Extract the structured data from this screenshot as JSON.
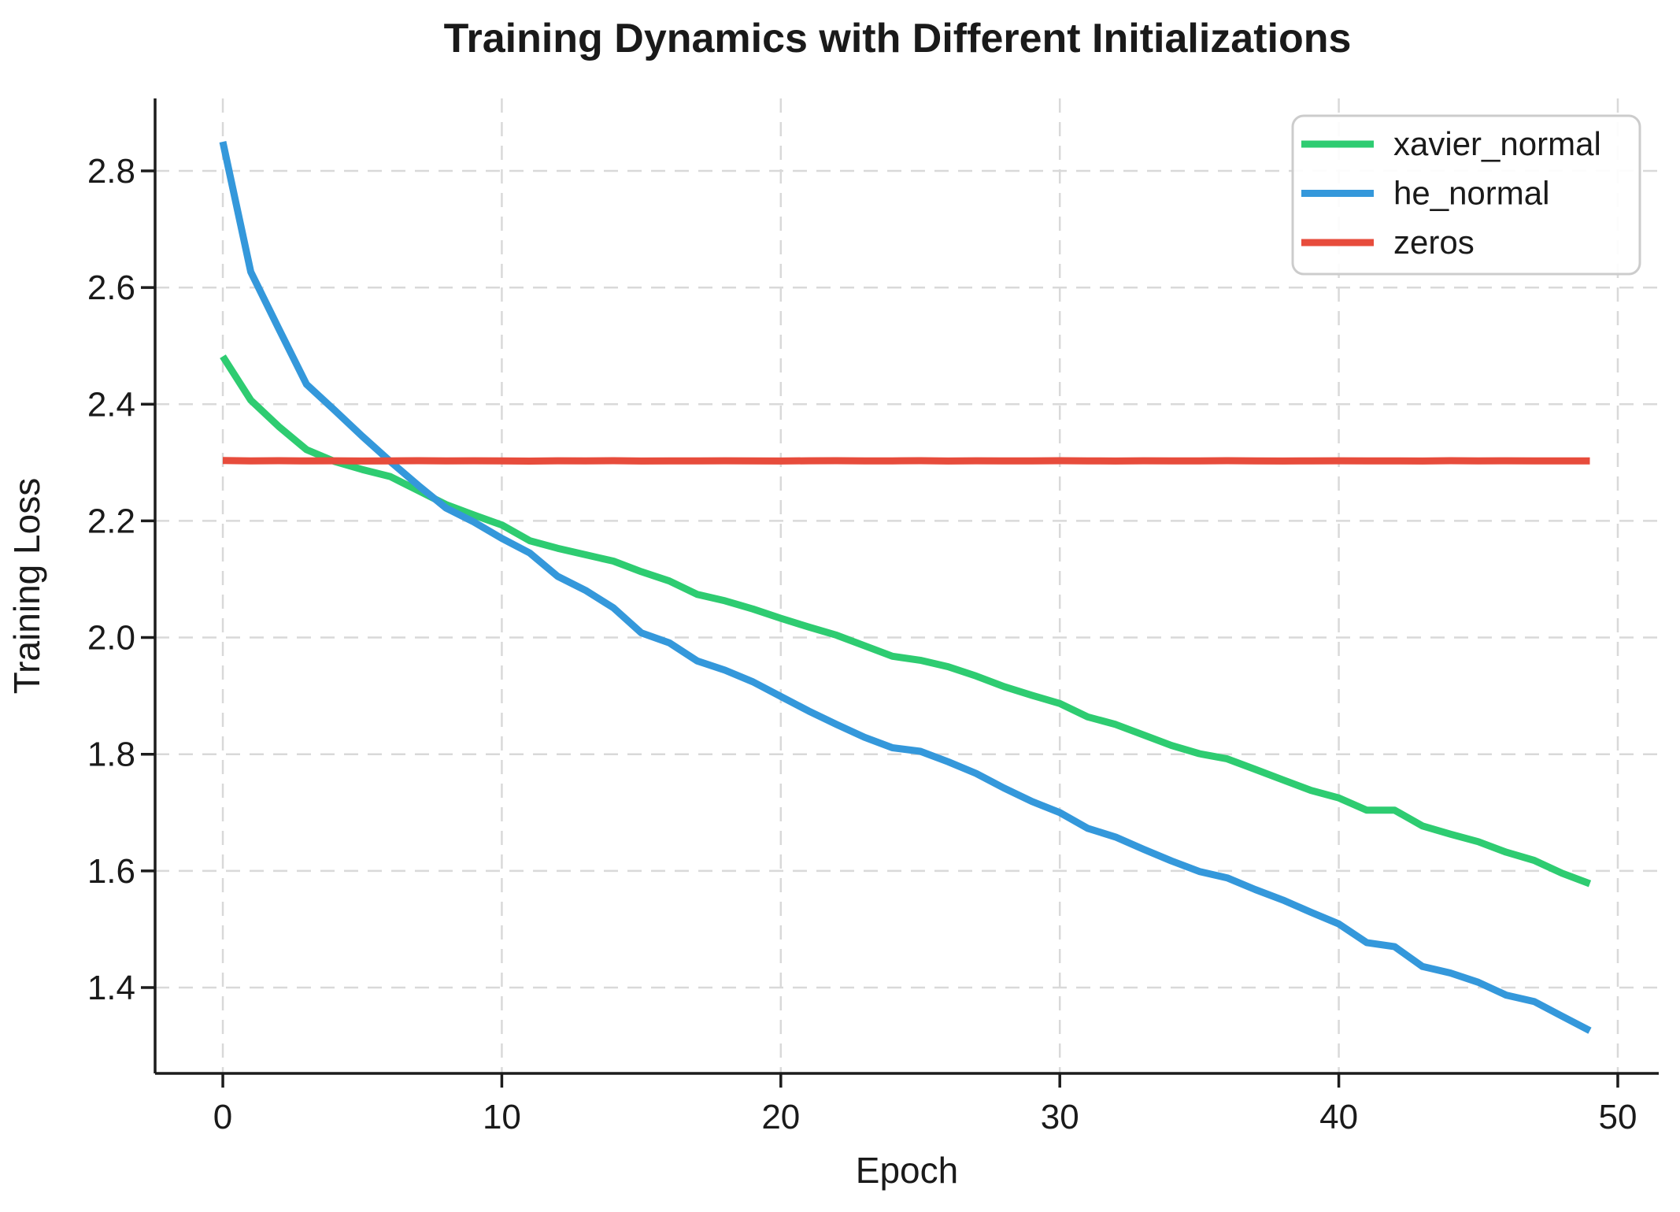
{
  "chart_data": {
    "type": "line",
    "title": "Training Dynamics with Different Initializations",
    "xlabel": "Epoch",
    "ylabel": "Training Loss",
    "x": [
      0,
      1,
      2,
      3,
      4,
      5,
      6,
      7,
      8,
      9,
      10,
      11,
      12,
      13,
      14,
      15,
      16,
      17,
      18,
      19,
      20,
      21,
      22,
      23,
      24,
      25,
      26,
      27,
      28,
      29,
      30,
      31,
      32,
      33,
      34,
      35,
      36,
      37,
      38,
      39,
      40,
      41,
      42,
      43,
      44,
      45,
      46,
      47,
      48,
      49
    ],
    "series": [
      {
        "name": "xavier_normal",
        "color": "#2ecc71",
        "values": [
          2.482,
          2.407,
          2.362,
          2.322,
          2.302,
          2.288,
          2.276,
          2.252,
          2.228,
          2.21,
          2.193,
          2.166,
          2.153,
          2.142,
          2.131,
          2.113,
          2.097,
          2.074,
          2.063,
          2.049,
          2.033,
          2.018,
          2.004,
          1.986,
          1.968,
          1.961,
          1.95,
          1.934,
          1.916,
          1.901,
          1.887,
          1.864,
          1.851,
          1.833,
          1.815,
          1.801,
          1.792,
          1.774,
          1.756,
          1.738,
          1.725,
          1.704,
          1.704,
          1.677,
          1.663,
          1.65,
          1.632,
          1.618,
          1.596,
          1.578
        ]
      },
      {
        "name": "he_normal",
        "color": "#3498db",
        "values": [
          2.85,
          2.627,
          2.53,
          2.434,
          2.39,
          2.345,
          2.302,
          2.261,
          2.222,
          2.198,
          2.17,
          2.145,
          2.105,
          2.081,
          2.051,
          2.008,
          1.991,
          1.96,
          1.944,
          1.924,
          1.899,
          1.874,
          1.851,
          1.829,
          1.811,
          1.805,
          1.787,
          1.767,
          1.742,
          1.719,
          1.7,
          1.673,
          1.658,
          1.637,
          1.617,
          1.599,
          1.588,
          1.568,
          1.55,
          1.529,
          1.509,
          1.477,
          1.47,
          1.436,
          1.425,
          1.409,
          1.387,
          1.376,
          1.351,
          1.326
        ]
      },
      {
        "name": "zeros",
        "color": "#e74c3c",
        "values": [
          2.3035,
          2.3029,
          2.3031,
          2.3027,
          2.303,
          2.3026,
          2.3029,
          2.3032,
          2.3027,
          2.303,
          2.3028,
          2.3025,
          2.303,
          2.3028,
          2.3031,
          2.3026,
          2.3029,
          2.3027,
          2.303,
          2.3028,
          2.3026,
          2.303,
          2.3032,
          2.3027,
          2.3029,
          2.3031,
          2.3026,
          2.303,
          2.3028,
          2.3027,
          2.3031,
          2.3029,
          2.3026,
          2.303,
          2.3027,
          2.3029,
          2.3031,
          2.3028,
          2.3026,
          2.3029,
          2.303,
          2.3027,
          2.3029,
          2.3026,
          2.3031,
          2.3028,
          2.303,
          2.3027,
          2.3029,
          2.3028
        ]
      }
    ],
    "xticks": [
      0,
      10,
      20,
      30,
      40,
      50
    ],
    "yticks": [
      1.4,
      1.6,
      1.8,
      2.0,
      2.2,
      2.4,
      2.6,
      2.8
    ],
    "xlim": [
      -2.428,
      51.468
    ],
    "ylim": [
      1.2528,
      2.9242
    ],
    "grid": true,
    "legend_position": "upper right"
  }
}
